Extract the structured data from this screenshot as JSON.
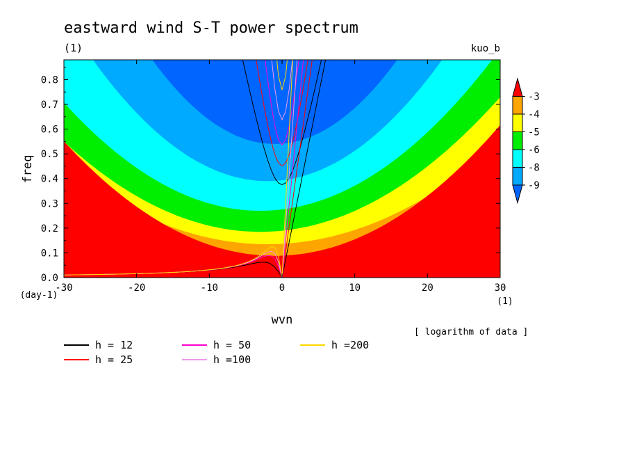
{
  "chart_data": {
    "type": "heatmap",
    "title": "eastward wind S-T power spectrum",
    "subtitle_left": "(1)",
    "subtitle_right": "kuo_b",
    "xlabel": "wvn",
    "ylabel": "freq",
    "x_unit": "(1)",
    "y_unit": "(day-1)",
    "xlim": [
      -30,
      30
    ],
    "ylim": [
      0,
      0.88
    ],
    "x_ticks": [
      -30,
      -20,
      -10,
      0,
      10,
      20,
      30
    ],
    "x_tick_labels": [
      "-30",
      "-20",
      "-10",
      "0",
      "10",
      "20",
      "30"
    ],
    "y_ticks": [
      0.0,
      0.1,
      0.2,
      0.3,
      0.4,
      0.5,
      0.6,
      0.7,
      0.8
    ],
    "y_tick_labels": [
      "0.0",
      "0.1",
      "0.2",
      "0.3",
      "0.4",
      "0.5",
      "0.6",
      "0.7",
      "0.8"
    ],
    "note": "[ logarithm of data ]",
    "colorbar": {
      "labels": [
        "-3",
        "-4",
        "-5",
        "-6",
        "-8",
        "-9"
      ],
      "colors": [
        "#ff0000",
        "#ffa500",
        "#ffff00",
        "#00ee00",
        "#00ffff",
        "#00aaff",
        "#0066ff"
      ]
    },
    "fill_levels": [
      {
        "level": "below -9",
        "color": "#0066ff",
        "y0": 0.77,
        "a": 0.0015,
        "xc": -1
      },
      {
        "level": "-9 to -8",
        "color": "#00aaff",
        "y0": 0.54,
        "a": 0.0012,
        "xc": -1
      },
      {
        "level": "-8 to -6",
        "color": "#00ffff",
        "y0": 0.39,
        "a": 0.00085,
        "xc": -2
      },
      {
        "level": "-6 to -5",
        "color": "#00ee00",
        "y0": 0.27,
        "a": 0.0006,
        "xc": -3
      },
      {
        "level": "-5 to -4",
        "color": "#ffff00",
        "y0": 0.185,
        "a": 0.0005,
        "xc": -3
      },
      {
        "level": "-4 to -3",
        "color": "#ffa500",
        "y0": 0.135,
        "a": 0.0004,
        "xc": -2
      },
      {
        "level": "above -3",
        "color": "#ff0000",
        "y0": 0.088,
        "a": 0.00055,
        "xc": -1
      }
    ],
    "series": [
      {
        "name": "h = 12",
        "color": "#000000",
        "h": 12
      },
      {
        "name": "h = 25",
        "color": "#ff0000",
        "h": 25
      },
      {
        "name": "h = 50",
        "color": "#ff00cc",
        "h": 50
      },
      {
        "name": "h =100",
        "color": "#ee99ee",
        "h": 100
      },
      {
        "name": "h =200",
        "color": "#ffd700",
        "h": 200
      }
    ]
  }
}
